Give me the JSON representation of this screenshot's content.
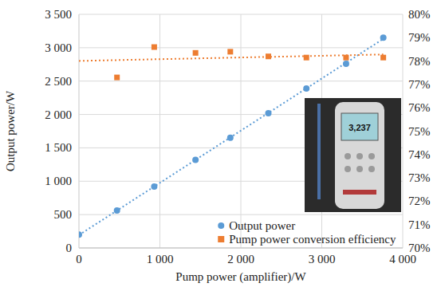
{
  "chart_data": {
    "type": "scatter",
    "x_label": "Pump power (amplifier)/W",
    "y_label": "Output power/W",
    "x": [
      0,
      470,
      930,
      1440,
      1870,
      2340,
      2810,
      3300,
      3760
    ],
    "series": [
      {
        "name": "Output power",
        "color": "#5b9bd5",
        "marker": "circle",
        "line_style": "dotted",
        "values": [
          200,
          560,
          920,
          1320,
          1650,
          2020,
          2390,
          2760,
          3150
        ]
      },
      {
        "name": "Pump power conversion efficiency",
        "color": "#ed7d31",
        "marker": "square",
        "line_style": "dotted",
        "axis": "y2",
        "values": [
          null,
          77.3,
          78.6,
          78.35,
          78.4,
          78.2,
          78.15,
          78.15,
          78.15
        ]
      }
    ],
    "xlim": [
      0,
      4000
    ],
    "xticks": [
      0,
      {
        "value": 1000,
        "label": "1 000"
      },
      {
        "value": 2000,
        "label": "2 000"
      },
      {
        "value": 3000,
        "label": "3 000"
      },
      {
        "value": 4000,
        "label": "4 000"
      }
    ],
    "ylim": [
      0,
      3500
    ],
    "yticks": [
      0,
      500,
      {
        "value": 1000,
        "label": "1 000"
      },
      {
        "value": 1500,
        "label": "1 500"
      },
      {
        "value": 2000,
        "label": "2 000"
      },
      {
        "value": 2500,
        "label": "2 500"
      },
      {
        "value": 3000,
        "label": "3 000"
      },
      {
        "value": 3500,
        "label": "3 500"
      }
    ],
    "y2lim": [
      70,
      80
    ],
    "y2ticks": [
      {
        "value": 70,
        "label": "70%"
      },
      {
        "value": 71,
        "label": "71%"
      },
      {
        "value": 72,
        "label": "72%"
      },
      {
        "value": 73,
        "label": "73%"
      },
      {
        "value": 74,
        "label": "74%"
      },
      {
        "value": 75,
        "label": "75%"
      },
      {
        "value": 76,
        "label": "76%"
      },
      {
        "value": 77,
        "label": "77%"
      },
      {
        "value": 78,
        "label": "78%"
      },
      {
        "value": 79,
        "label": "79%"
      },
      {
        "value": 80,
        "label": "80%"
      }
    ],
    "grid": true,
    "legend": "lower right",
    "annotations": [
      "3,237"
    ]
  }
}
